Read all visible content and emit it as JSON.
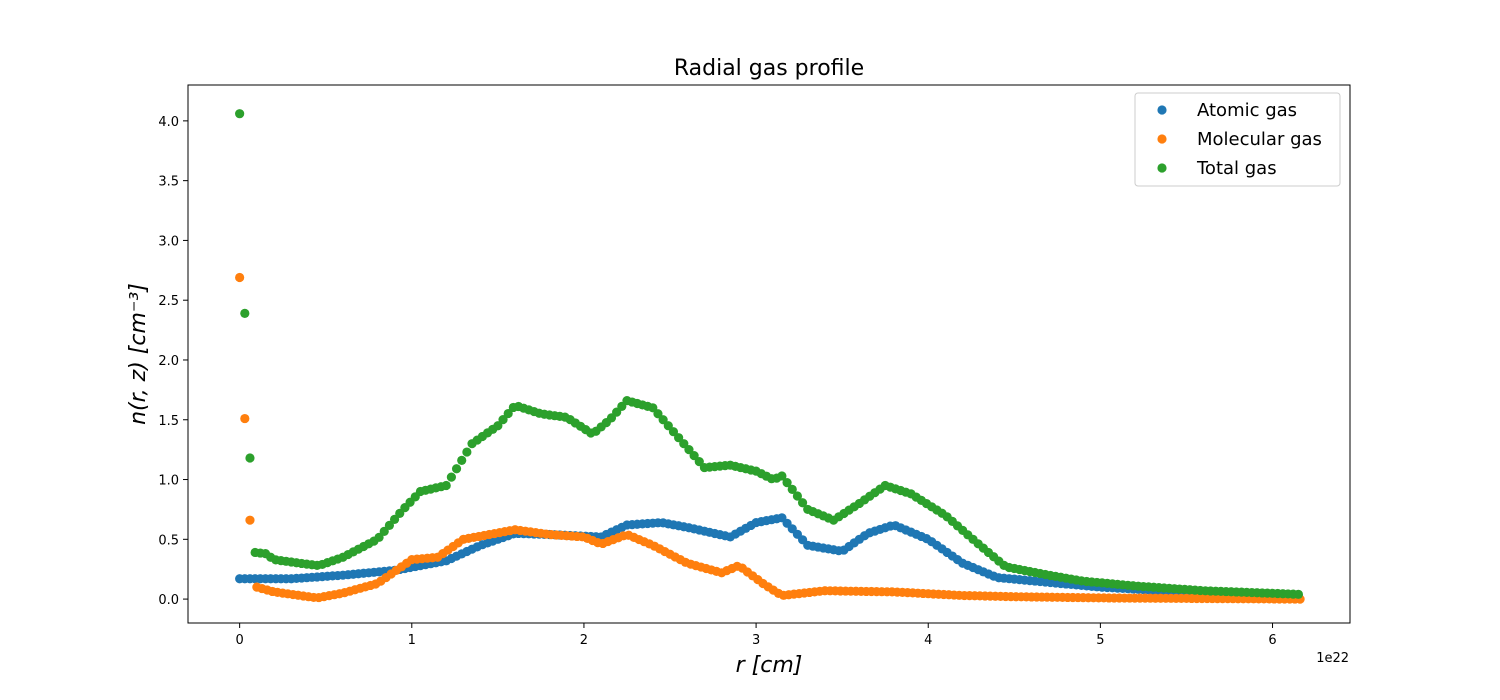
{
  "chart_data": {
    "type": "scatter",
    "title": "Radial gas profile",
    "xlabel": "r [cm]",
    "ylabel": "n(r, z) [cm⁻³]",
    "x_offset_label": "1e22",
    "xlim": [
      -0.3,
      6.45
    ],
    "ylim": [
      -0.2,
      4.3
    ],
    "xticks": [
      0,
      1,
      2,
      3,
      4,
      5,
      6
    ],
    "xtick_labels": [
      "0",
      "1",
      "2",
      "3",
      "4",
      "5",
      "6"
    ],
    "yticks": [
      0.0,
      0.5,
      1.0,
      1.5,
      2.0,
      2.5,
      3.0,
      3.5,
      4.0
    ],
    "ytick_labels": [
      "0.0",
      "0.5",
      "1.0",
      "1.5",
      "2.0",
      "2.5",
      "3.0",
      "3.5",
      "4.0"
    ],
    "grid": false,
    "legend_position": "top-right",
    "x_range": [
      0,
      6.15
    ],
    "x_step": 0.03,
    "series": [
      {
        "name": "Atomic gas",
        "color": "#1f77b4",
        "profile": [
          [
            0,
            0.17
          ],
          [
            0.3,
            0.17
          ],
          [
            0.6,
            0.2
          ],
          [
            0.9,
            0.24
          ],
          [
            1.2,
            0.32
          ],
          [
            1.4,
            0.45
          ],
          [
            1.6,
            0.55
          ],
          [
            1.8,
            0.54
          ],
          [
            2.1,
            0.52
          ],
          [
            2.25,
            0.62
          ],
          [
            2.45,
            0.64
          ],
          [
            2.6,
            0.6
          ],
          [
            2.85,
            0.52
          ],
          [
            3.0,
            0.64
          ],
          [
            3.15,
            0.68
          ],
          [
            3.3,
            0.45
          ],
          [
            3.5,
            0.4
          ],
          [
            3.65,
            0.55
          ],
          [
            3.8,
            0.62
          ],
          [
            4.0,
            0.5
          ],
          [
            4.2,
            0.3
          ],
          [
            4.4,
            0.18
          ],
          [
            4.7,
            0.14
          ],
          [
            5.0,
            0.1
          ],
          [
            5.5,
            0.06
          ],
          [
            6.15,
            0.03
          ]
        ],
        "extra_points": []
      },
      {
        "name": "Molecular gas",
        "color": "#ff7f0e",
        "profile": [
          [
            0.1,
            0.1
          ],
          [
            0.2,
            0.06
          ],
          [
            0.45,
            0.01
          ],
          [
            0.6,
            0.05
          ],
          [
            0.8,
            0.13
          ],
          [
            1.0,
            0.33
          ],
          [
            1.15,
            0.35
          ],
          [
            1.3,
            0.5
          ],
          [
            1.6,
            0.58
          ],
          [
            1.8,
            0.54
          ],
          [
            2.0,
            0.52
          ],
          [
            2.1,
            0.46
          ],
          [
            2.25,
            0.54
          ],
          [
            2.4,
            0.45
          ],
          [
            2.6,
            0.3
          ],
          [
            2.8,
            0.22
          ],
          [
            2.9,
            0.28
          ],
          [
            3.05,
            0.12
          ],
          [
            3.15,
            0.03
          ],
          [
            3.4,
            0.07
          ],
          [
            3.8,
            0.06
          ],
          [
            4.2,
            0.03
          ],
          [
            4.5,
            0.02
          ],
          [
            5.0,
            0.01
          ],
          [
            6.15,
            0.0
          ]
        ],
        "extra_points": [
          [
            0.0,
            2.69
          ],
          [
            0.03,
            1.51
          ],
          [
            0.06,
            0.66
          ]
        ]
      },
      {
        "name": "Total gas",
        "color": "#2ca02c",
        "profile": [
          [
            0.09,
            0.39
          ],
          [
            0.15,
            0.38
          ],
          [
            0.2,
            0.33
          ],
          [
            0.35,
            0.3
          ],
          [
            0.46,
            0.28
          ],
          [
            0.6,
            0.35
          ],
          [
            0.8,
            0.5
          ],
          [
            0.95,
            0.75
          ],
          [
            1.05,
            0.9
          ],
          [
            1.2,
            0.95
          ],
          [
            1.35,
            1.3
          ],
          [
            1.5,
            1.45
          ],
          [
            1.6,
            1.62
          ],
          [
            1.75,
            1.55
          ],
          [
            1.9,
            1.52
          ],
          [
            2.05,
            1.38
          ],
          [
            2.15,
            1.5
          ],
          [
            2.25,
            1.66
          ],
          [
            2.4,
            1.6
          ],
          [
            2.55,
            1.35
          ],
          [
            2.7,
            1.1
          ],
          [
            2.85,
            1.12
          ],
          [
            3.0,
            1.07
          ],
          [
            3.1,
            1.0
          ],
          [
            3.15,
            1.03
          ],
          [
            3.3,
            0.75
          ],
          [
            3.45,
            0.66
          ],
          [
            3.6,
            0.8
          ],
          [
            3.75,
            0.95
          ],
          [
            3.9,
            0.88
          ],
          [
            4.1,
            0.7
          ],
          [
            4.3,
            0.45
          ],
          [
            4.45,
            0.27
          ],
          [
            4.7,
            0.2
          ],
          [
            4.9,
            0.15
          ],
          [
            5.2,
            0.11
          ],
          [
            5.6,
            0.07
          ],
          [
            6.15,
            0.04
          ]
        ],
        "extra_points": [
          [
            0.0,
            4.06
          ],
          [
            0.03,
            2.39
          ],
          [
            0.06,
            1.18
          ]
        ]
      }
    ]
  }
}
